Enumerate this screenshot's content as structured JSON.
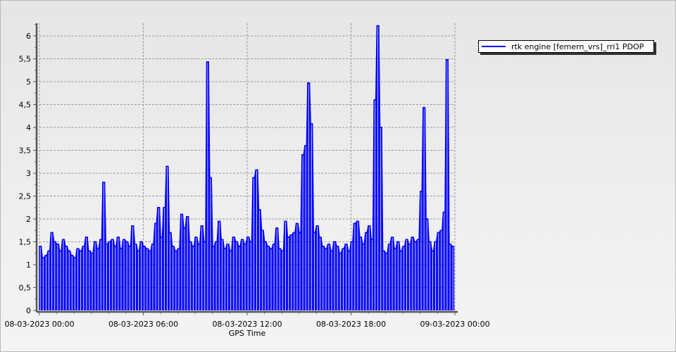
{
  "chart_data": {
    "type": "line",
    "xlabel": "GPS Time",
    "ylabel": "",
    "x_start": "08-03-2023 00:00",
    "x_interval_minutes": 10,
    "x_ticks": [
      "08-03-2023 00:00",
      "08-03-2023 06:00",
      "08-03-2023 12:00",
      "08-03-2023 18:00",
      "09-03-2023 00:00"
    ],
    "y_ticks": [
      "0",
      "0,5",
      "1",
      "1,5",
      "2",
      "2,5",
      "3",
      "3,5",
      "4",
      "4,5",
      "5",
      "5,5",
      "6"
    ],
    "ylim": [
      0,
      6.3
    ],
    "xlim_hours": [
      0,
      24
    ],
    "grid": true,
    "legend_position": "top-right",
    "series": [
      {
        "name": "rtk engine [femern_vrs]_rri1 PDOP",
        "color": "#0000ff",
        "values": [
          1.4,
          1.15,
          1.2,
          1.3,
          1.7,
          1.5,
          1.45,
          1.3,
          1.55,
          1.4,
          1.3,
          1.2,
          1.15,
          1.35,
          1.3,
          1.4,
          1.6,
          1.3,
          1.25,
          1.5,
          1.35,
          1.55,
          2.8,
          1.45,
          1.5,
          1.55,
          1.4,
          1.6,
          1.35,
          1.55,
          1.5,
          1.4,
          1.85,
          1.45,
          1.3,
          1.5,
          1.4,
          1.35,
          1.3,
          1.45,
          1.9,
          2.25,
          1.6,
          2.25,
          3.15,
          1.7,
          1.4,
          1.3,
          1.35,
          2.1,
          1.8,
          2.05,
          1.5,
          1.4,
          1.6,
          1.45,
          1.85,
          1.5,
          5.43,
          2.9,
          1.4,
          1.5,
          1.95,
          1.55,
          1.35,
          1.45,
          1.3,
          1.6,
          1.5,
          1.4,
          1.55,
          1.45,
          1.6,
          1.5,
          2.9,
          3.07,
          2.2,
          1.75,
          1.5,
          1.4,
          1.35,
          1.45,
          1.8,
          1.35,
          1.3,
          1.95,
          1.6,
          1.65,
          1.7,
          1.9,
          1.7,
          3.4,
          3.6,
          4.97,
          4.08,
          1.7,
          1.85,
          1.6,
          1.4,
          1.35,
          1.45,
          1.3,
          1.5,
          1.4,
          1.25,
          1.35,
          1.45,
          1.3,
          1.5,
          1.9,
          1.95,
          1.6,
          1.45,
          1.7,
          1.85,
          1.55,
          4.6,
          6.22,
          4.0,
          1.3,
          1.25,
          1.45,
          1.6,
          1.35,
          1.5,
          1.3,
          1.4,
          1.55,
          1.45,
          1.6,
          1.5,
          1.55,
          2.6,
          4.43,
          2.0,
          1.5,
          1.3,
          1.5,
          1.7,
          1.75,
          2.15,
          5.48,
          1.45,
          1.4
        ]
      }
    ]
  }
}
